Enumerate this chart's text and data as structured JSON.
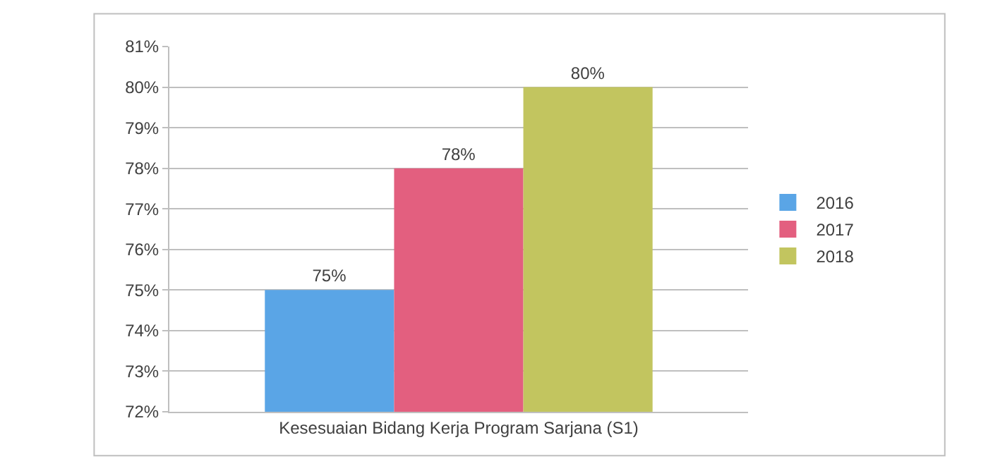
{
  "chart_data": {
    "type": "bar",
    "categories": [
      "Kesesuaian Bidang Kerja Program Sarjana (S1)"
    ],
    "series": [
      {
        "name": "2016",
        "color": "#5aa5e6",
        "values": [
          75
        ],
        "value_labels": [
          "75%"
        ]
      },
      {
        "name": "2017",
        "color": "#e35f7f",
        "values": [
          78
        ],
        "value_labels": [
          "78%"
        ]
      },
      {
        "name": "2018",
        "color": "#c2c55f",
        "values": [
          80
        ],
        "value_labels": [
          "80%"
        ]
      }
    ],
    "ylim": [
      72,
      81
    ],
    "yticks": [
      {
        "value": 72,
        "label": "72%"
      },
      {
        "value": 73,
        "label": "73%"
      },
      {
        "value": 74,
        "label": "74%"
      },
      {
        "value": 75,
        "label": "75%"
      },
      {
        "value": 76,
        "label": "76%"
      },
      {
        "value": 77,
        "label": "77%"
      },
      {
        "value": 78,
        "label": "78%"
      },
      {
        "value": 79,
        "label": "79%"
      },
      {
        "value": 80,
        "label": "80%"
      },
      {
        "value": 81,
        "label": "81%"
      }
    ],
    "grid": "y",
    "legend": "right"
  }
}
